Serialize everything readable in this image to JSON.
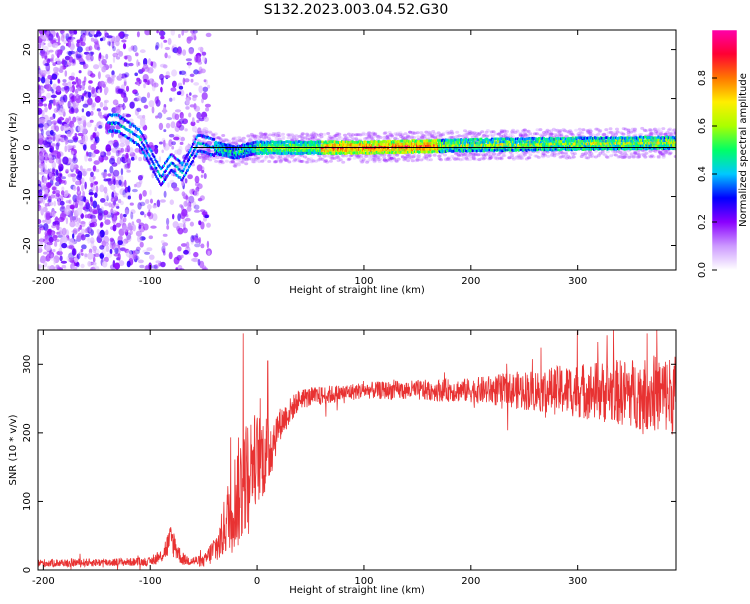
{
  "title": "S132.2023.003.04.52.G30",
  "chart_data": [
    {
      "type": "heatmap",
      "xlabel": "Height of straight line (km)",
      "ylabel": "Frequency (Hz)",
      "xlim": [
        -205,
        392
      ],
      "ylim": [
        -25,
        24
      ],
      "xticks": [
        -200,
        -100,
        0,
        100,
        200,
        300
      ],
      "yticks": [
        -20,
        -10,
        0,
        10,
        20
      ],
      "colorbar": {
        "label": "Normalized spectral amplitude",
        "range": [
          0,
          1
        ],
        "ticks": [
          0.0,
          0.2,
          0.4,
          0.6,
          0.8
        ],
        "tick_labels": [
          "0.0",
          "0.2",
          "0.4",
          "0.6",
          "0.8"
        ],
        "colors": [
          "#ffffff",
          "#cc99ff",
          "#8a00ff",
          "#0000ff",
          "#00c8ff",
          "#00ff66",
          "#aaff00",
          "#ffee00",
          "#ff7700",
          "#ff0033",
          "#ff00aa"
        ]
      },
      "ridge": [
        {
          "x": -130,
          "f": 5
        },
        {
          "x": -110,
          "f": 2
        },
        {
          "x": -100,
          "f": -2
        },
        {
          "x": -90,
          "f": -6
        },
        {
          "x": -80,
          "f": -3
        },
        {
          "x": -70,
          "f": -5
        },
        {
          "x": -55,
          "f": 1
        },
        {
          "x": -40,
          "f": 0
        },
        {
          "x": -20,
          "f": -1
        },
        {
          "x": 0,
          "f": 0
        },
        {
          "x": 100,
          "f": 0
        },
        {
          "x": 200,
          "f": 0.5
        },
        {
          "x": 300,
          "f": 0.8
        },
        {
          "x": 392,
          "f": 1
        }
      ],
      "reference_line_f": 0,
      "grid": false
    },
    {
      "type": "line",
      "xlabel": "Height of straight line (km)",
      "ylabel": "SNR (10 * v/v)",
      "xlim": [
        -205,
        392
      ],
      "ylim": [
        0,
        350
      ],
      "xticks": [
        -200,
        -100,
        0,
        100,
        200,
        300
      ],
      "yticks": [
        0,
        100,
        200,
        300
      ],
      "series": [
        {
          "color": "#e83232",
          "envelope": [
            {
              "x": -205,
              "mean": 10,
              "spread": 6
            },
            {
              "x": -100,
              "mean": 12,
              "spread": 6
            },
            {
              "x": -90,
              "mean": 20,
              "spread": 10
            },
            {
              "x": -80,
              "mean": 45,
              "spread": 25
            },
            {
              "x": -70,
              "mean": 15,
              "spread": 8
            },
            {
              "x": -50,
              "mean": 12,
              "spread": 8
            },
            {
              "x": -35,
              "mean": 40,
              "spread": 30
            },
            {
              "x": -25,
              "mean": 90,
              "spread": 60
            },
            {
              "x": -15,
              "mean": 120,
              "spread": 90
            },
            {
              "x": -5,
              "mean": 160,
              "spread": 70
            },
            {
              "x": 10,
              "mean": 170,
              "spread": 60
            },
            {
              "x": 20,
              "mean": 210,
              "spread": 25
            },
            {
              "x": 40,
              "mean": 250,
              "spread": 15
            },
            {
              "x": 100,
              "mean": 262,
              "spread": 12
            },
            {
              "x": 200,
              "mean": 262,
              "spread": 18
            },
            {
              "x": 300,
              "mean": 262,
              "spread": 40
            },
            {
              "x": 392,
              "mean": 255,
              "spread": 60
            }
          ],
          "peaks": [
            {
              "x": -13,
              "y": 345
            },
            {
              "x": 10,
              "y": 305
            },
            {
              "x": 365,
              "y": 345
            }
          ]
        }
      ],
      "grid": false
    }
  ]
}
